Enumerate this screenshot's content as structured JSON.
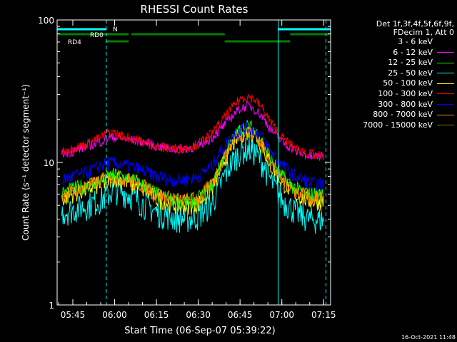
{
  "chart_data": {
    "type": "line",
    "title": "RHESSI Count Rates",
    "xlabel": "Start Time (06-Sep-07 05:39:22)",
    "ylabel": "Count Rate (s⁻¹ detector segment⁻¹)",
    "y_scale": "log",
    "ylim": [
      1,
      100
    ],
    "y_ticks": [
      1,
      10,
      100
    ],
    "xlim": [
      "05:39:22",
      "07:17:30"
    ],
    "x_ticks": [
      "05:45",
      "06:00",
      "06:15",
      "06:30",
      "06:45",
      "07:00",
      "07:15"
    ],
    "grid": false,
    "legend_placement": "right",
    "legend_header": [
      "Det 1f,3f,4f,5f,6f,9f,",
      "FDecim 1, Att 0"
    ],
    "x": [
      "05:41",
      "05:45",
      "05:50",
      "05:55",
      "05:58",
      "06:00",
      "06:05",
      "06:10",
      "06:15",
      "06:20",
      "06:25",
      "06:30",
      "06:35",
      "06:38",
      "06:42",
      "06:45",
      "06:48",
      "06:50",
      "06:53",
      "06:56",
      "07:00",
      "07:05",
      "07:10",
      "07:15"
    ],
    "series": [
      {
        "name": "3 - 6 keV",
        "color": "#000000",
        "values": [
          5,
          5.5,
          6,
          7,
          7.5,
          8,
          7.5,
          6.5,
          5.5,
          5,
          4.8,
          5,
          6.2,
          8,
          12,
          15,
          16,
          15,
          12,
          9,
          7,
          5.5,
          5,
          5
        ]
      },
      {
        "name": "6 - 12 keV",
        "color": "#ff00ff",
        "values": [
          11.5,
          12,
          13,
          14,
          15,
          15,
          14.5,
          14,
          13,
          12.5,
          12.5,
          13,
          15,
          17,
          21,
          24,
          25,
          24,
          21,
          17,
          14,
          12,
          11,
          11
        ]
      },
      {
        "name": "12 - 25 keV",
        "color": "#00ff00",
        "values": [
          6,
          6.5,
          7,
          7.5,
          8,
          8.2,
          7.8,
          7,
          6,
          5.5,
          5.3,
          5.5,
          7,
          9.5,
          14,
          17,
          18,
          17,
          14,
          10.5,
          8,
          6.5,
          6,
          6
        ]
      },
      {
        "name": "25 - 50 keV",
        "color": "#00ffff",
        "values": [
          4.5,
          4.7,
          5,
          5.5,
          6,
          6.5,
          6,
          5.2,
          4.5,
          4.2,
          4,
          4.2,
          5.2,
          7,
          10,
          12,
          12.5,
          12,
          10,
          7.5,
          5.5,
          4.5,
          4,
          4
        ]
      },
      {
        "name": "50 - 100 keV",
        "color": "#ffff00",
        "values": [
          5.5,
          6,
          6.5,
          7,
          7.5,
          7.8,
          7.3,
          6.5,
          5.6,
          5.1,
          4.9,
          5.1,
          6.5,
          9,
          13,
          16,
          16.5,
          16,
          13,
          9.5,
          7.3,
          5.9,
          5.4,
          5.3
        ]
      },
      {
        "name": "100 - 300 keV",
        "color": "#ff0000",
        "values": [
          12,
          12.5,
          13.5,
          15,
          16.5,
          16,
          15,
          14,
          13,
          12.5,
          12.5,
          13.5,
          16,
          19,
          24,
          28,
          29,
          28,
          24,
          19,
          15,
          12.5,
          11.5,
          11
        ]
      },
      {
        "name": "300 - 800 keV",
        "color": "#0000ff",
        "values": [
          7.5,
          8,
          8.5,
          9.5,
          10,
          9.8,
          9.5,
          8.8,
          8,
          7.6,
          7.5,
          8,
          9.5,
          12,
          15,
          17,
          17.5,
          17,
          15,
          12,
          9.5,
          8,
          7.2,
          7
        ]
      },
      {
        "name": "800 - 7000 keV",
        "color": "#ff8c00",
        "values": [
          5.8,
          6.2,
          6.8,
          7.4,
          7.8,
          8,
          7.6,
          6.9,
          6,
          5.6,
          5.4,
          5.6,
          7,
          9.5,
          13.5,
          16,
          16.5,
          16,
          13.5,
          10,
          7.6,
          6.2,
          5.7,
          5.6
        ]
      },
      {
        "name": "7000 - 15000 keV",
        "color": "#808000",
        "values": [
          5.9,
          6.3,
          6.8,
          7.4,
          7.9,
          8.1,
          7.7,
          6.9,
          6,
          5.6,
          5.4,
          5.6,
          7,
          9.5,
          13.5,
          16,
          16.5,
          16,
          13.5,
          10,
          7.6,
          6.2,
          5.7,
          5.6
        ]
      }
    ],
    "annotations": {
      "vlines_solid": [
        "05:39:22",
        "06:58:40"
      ],
      "vlines_dashed": [
        "05:57:00",
        "07:15:50"
      ],
      "state_bars": [
        {
          "label": "N",
          "color": "#00ffff",
          "segments": [
            [
              "05:39:22",
              "05:57:00"
            ],
            [
              "06:58:40",
              "07:17:30"
            ]
          ],
          "level": 0
        },
        {
          "label": "RD0",
          "color": "#008000",
          "segments": [
            [
              "05:39:22",
              "06:05:00"
            ],
            [
              "06:06:00",
              "06:39:30"
            ],
            [
              "07:03:00",
              "07:17:30"
            ]
          ],
          "level": 1
        },
        {
          "label": "RD4",
          "color": "#008000",
          "segments": [
            [
              "05:57:00",
              "06:05:00"
            ],
            [
              "06:39:30",
              "07:03:00"
            ]
          ],
          "level": 2
        }
      ]
    }
  },
  "timestamp": "16-Oct-2021 11:48"
}
